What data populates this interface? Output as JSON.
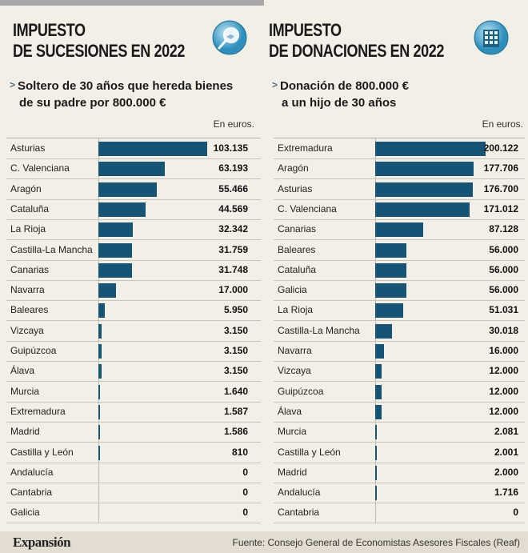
{
  "chart_data": [
    {
      "type": "bar",
      "title": "IMPUESTO DE SUCESIONES EN 2022",
      "title_lines": [
        "IMPUESTO",
        "DE SUCESIONES EN 2022"
      ],
      "subtitle_lines": [
        "Soltero de 30 años que hereda bienes",
        "de su padre por 800.000 €"
      ],
      "unit": "En euros.",
      "orientation": "horizontal",
      "grid": false,
      "categories": [
        "Asturias",
        "C. Valenciana",
        "Aragón",
        "Cataluña",
        "La Rioja",
        "Castilla-La Mancha",
        "Canarias",
        "Navarra",
        "Baleares",
        "Vizcaya",
        "Guipúzcoa",
        "Álava",
        "Murcia",
        "Extremadura",
        "Madrid",
        "Castilla y León",
        "Andalucía",
        "Cantabria",
        "Galicia"
      ],
      "values": [
        103135,
        63193,
        55466,
        44569,
        32342,
        31759,
        31748,
        17000,
        5950,
        3150,
        3150,
        3150,
        1640,
        1587,
        1586,
        810,
        0,
        0,
        0
      ],
      "value_labels": [
        "103.135",
        "63.193",
        "55.466",
        "44.569",
        "32.342",
        "31.759",
        "31.748",
        "17.000",
        "5.950",
        "3.150",
        "3.150",
        "3.150",
        "1.640",
        "1.587",
        "1.586",
        "810",
        "0",
        "0",
        "0"
      ],
      "xlim": [
        0,
        103135
      ]
    },
    {
      "type": "bar",
      "title": "IMPUESTO DE DONACIONES EN 2022",
      "title_lines": [
        "IMPUESTO",
        "DE DONACIONES EN 2022"
      ],
      "subtitle_lines": [
        "Donación de 800.000 €",
        "a un hijo de 30 años"
      ],
      "unit": "En euros.",
      "orientation": "horizontal",
      "grid": false,
      "categories": [
        "Extremadura",
        "Aragón",
        "Asturias",
        "C. Valenciana",
        "Canarias",
        "Baleares",
        "Cataluña",
        "Galicia",
        "La Rioja",
        "Castilla-La Mancha",
        "Navarra",
        "Vizcaya",
        "Guipúzcoa",
        "Álava",
        "Murcia",
        "Castilla y León",
        "Madrid",
        "Andalucía",
        "Cantabria"
      ],
      "values": [
        200122,
        177706,
        176700,
        171012,
        87128,
        56000,
        56000,
        56000,
        51031,
        30018,
        16000,
        12000,
        12000,
        12000,
        2081,
        2001,
        2000,
        1716,
        0
      ],
      "value_labels": [
        "200.122",
        "177.706",
        "176.700",
        "171.012",
        "87.128",
        "56.000",
        "56.000",
        "56.000",
        "51.031",
        "30.018",
        "16.000",
        "12.000",
        "12.000",
        "12.000",
        "2.081",
        "2.001",
        "2.000",
        "1.716",
        "0"
      ],
      "xlim": [
        0,
        200122
      ]
    }
  ],
  "colors": {
    "bar": "#165476",
    "background": "#f2efe6",
    "footer": "#e2ddd0"
  },
  "icons": {
    "left": "handshake-magnifier-icon",
    "right": "building-icon"
  },
  "footer": {
    "brand": "Expansión",
    "source": "Fuente: Consejo General de Economistas Asesores Fiscales (Reaf)"
  }
}
